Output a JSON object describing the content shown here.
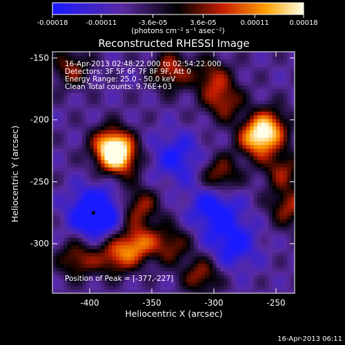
{
  "colorbar": {
    "tick_labels": [
      "-0.00018",
      "-0.00011",
      "-3.6e-05",
      "3.6e-05",
      "0.00011",
      "0.00018"
    ],
    "tick_values": [
      -0.00018,
      -0.00011,
      -3.6e-05,
      3.6e-05,
      0.00011,
      0.00018
    ],
    "range": [
      -0.00018,
      0.00018
    ],
    "units": "(photons cm⁻² s⁻¹ asec⁻²)",
    "colors": {
      "low": "#1a1aff",
      "mid_low": "#5a2aa0",
      "mid": "#000000",
      "mid_high": "#c81e00",
      "high": "#ffa000",
      "top": "#ffffe8"
    }
  },
  "chart_data": {
    "type": "heatmap",
    "title": "Reconstructed RHESSI Image",
    "xlabel": "Heliocentric X (arcsec)",
    "ylabel": "Heliocentric Y (arcsec)",
    "xlim": [
      -430,
      -235
    ],
    "ylim": [
      -340,
      -145
    ],
    "x_ticks": [
      -400,
      -350,
      -300,
      -250
    ],
    "x_tick_labels": [
      "-400",
      "-350",
      "-300",
      "-250"
    ],
    "y_ticks": [
      -150,
      -200,
      -250,
      -300
    ],
    "y_tick_labels": [
      "-150",
      "-200",
      "-250",
      "-300"
    ],
    "info_lines": [
      "16-Apr-2013 02:48:22.000 to 02:54:22.000",
      "Detectors: 3F 5F 6F 7F 8F 9F, Att 0",
      "Energy Range: 25.0 - 50.0 keV",
      "Clean     Total counts: 9.76E+03"
    ],
    "peak_label": "Position of Peak = [-377,-227]",
    "peak_position": [
      -377,
      -227
    ],
    "sources": [
      {
        "x": -382,
        "y": -222,
        "level": 1.0
      },
      {
        "x": -375,
        "y": -232,
        "level": 0.55
      },
      {
        "x": -362,
        "y": -300,
        "level": 0.65
      },
      {
        "x": -380,
        "y": -310,
        "level": 0.55
      },
      {
        "x": -410,
        "y": -312,
        "level": 0.5
      },
      {
        "x": -265,
        "y": -215,
        "level": 0.8
      },
      {
        "x": -255,
        "y": -205,
        "level": 0.6
      },
      {
        "x": -295,
        "y": -245,
        "level": 0.55
      },
      {
        "x": -360,
        "y": -270,
        "level": 0.5
      },
      {
        "x": -335,
        "y": -300,
        "level": 0.45
      },
      {
        "x": -310,
        "y": -325,
        "level": 0.5
      },
      {
        "x": -335,
        "y": -160,
        "level": 0.55
      },
      {
        "x": -302,
        "y": -165,
        "level": 0.45
      },
      {
        "x": -240,
        "y": -270,
        "level": 0.5
      },
      {
        "x": -415,
        "y": -158,
        "level": 0.45
      },
      {
        "x": -292,
        "y": -185,
        "level": 0.5
      },
      {
        "x": -245,
        "y": -240,
        "level": 0.45
      }
    ],
    "negative_regions": [
      {
        "x": -395,
        "y": -275,
        "level": -0.8
      },
      {
        "x": -300,
        "y": -270,
        "level": -0.5
      },
      {
        "x": -330,
        "y": -230,
        "level": -0.4
      },
      {
        "x": -285,
        "y": -300,
        "level": -0.45
      }
    ]
  },
  "footer": {
    "timestamp": "16-Apr-2013 06:11"
  }
}
